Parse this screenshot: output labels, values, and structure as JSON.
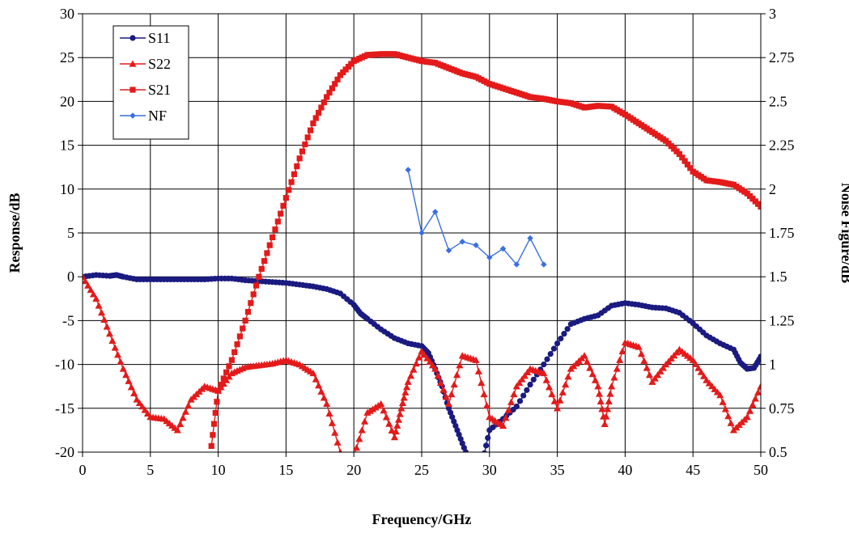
{
  "chart_data": {
    "type": "line",
    "title": "",
    "xlabel": "Frequency/GHz",
    "ylabel": "Response/dB",
    "y2label": "Noise Figure/dB",
    "xlim": [
      0,
      50
    ],
    "ylim": [
      -20,
      30
    ],
    "y2lim": [
      0.5,
      3
    ],
    "xticks": [
      "0",
      "5",
      "10",
      "15",
      "20",
      "25",
      "30",
      "35",
      "40",
      "45",
      "50"
    ],
    "yticks": [
      "-20",
      "-15",
      "-10",
      "-5",
      "0",
      "5",
      "10",
      "15",
      "20",
      "25",
      "30"
    ],
    "y2ticks": [
      "0.5",
      "0.75",
      "1",
      "1.25",
      "1.5",
      "1.75",
      "2",
      "2.25",
      "2.5",
      "2.75",
      "3"
    ],
    "grid": true,
    "legend_position": "top-left",
    "series": [
      {
        "name": "S11",
        "axis": "left",
        "color": "#1a1a80",
        "marker": "circle",
        "x": [
          0,
          1,
          2,
          2.5,
          3,
          4,
          5,
          6,
          7,
          8,
          9,
          10,
          11,
          12,
          13,
          14,
          15,
          16,
          17,
          18,
          19,
          20,
          20.5,
          21,
          22,
          23,
          24,
          25,
          25.5,
          26,
          26.5,
          27,
          27.5,
          28,
          28.5,
          29,
          29.5,
          30,
          31,
          32,
          33,
          34,
          35,
          36,
          37,
          38,
          39,
          40,
          41,
          42,
          43,
          44,
          45,
          46,
          47,
          48,
          48.5,
          49,
          49.5,
          50
        ],
        "values": [
          0,
          0.2,
          0.1,
          0.2,
          0,
          -0.3,
          -0.3,
          -0.3,
          -0.3,
          -0.3,
          -0.3,
          -0.2,
          -0.2,
          -0.4,
          -0.5,
          -0.6,
          -0.7,
          -0.9,
          -1.1,
          -1.4,
          -1.9,
          -3.2,
          -4.2,
          -4.8,
          -6,
          -7,
          -7.6,
          -7.9,
          -8.7,
          -10.5,
          -12.5,
          -15,
          -17,
          -19,
          -21,
          -23,
          -21,
          -17.5,
          -16.2,
          -14.8,
          -12.3,
          -10,
          -7.6,
          -5.4,
          -4.8,
          -4.4,
          -3.3,
          -3,
          -3.2,
          -3.5,
          -3.6,
          -4.1,
          -5.3,
          -6.7,
          -7.6,
          -8.3,
          -9.8,
          -10.5,
          -10.4,
          -9.1
        ]
      },
      {
        "name": "S22",
        "axis": "left",
        "color": "#e41a1a",
        "marker": "triangle",
        "x": [
          0,
          1,
          2,
          3,
          4,
          5,
          6,
          7,
          8,
          9,
          10,
          11,
          12,
          13,
          14,
          15,
          16,
          17,
          18,
          19,
          19.5,
          20,
          21,
          22,
          23,
          23.5,
          24,
          25,
          26,
          27,
          28,
          29,
          30,
          31,
          32,
          33,
          34,
          35,
          36,
          37,
          38,
          38.5,
          39,
          40,
          41,
          42,
          43,
          44,
          45,
          46,
          47,
          48,
          49,
          50
        ],
        "values": [
          0,
          -2.5,
          -6.5,
          -10.5,
          -14,
          -16,
          -16.2,
          -17.5,
          -14,
          -12.5,
          -13,
          -11,
          -10.3,
          -10.1,
          -9.9,
          -9.5,
          -10,
          -11,
          -14.5,
          -20,
          -22,
          -20.5,
          -15.5,
          -14.5,
          -18.3,
          -15,
          -12,
          -8.5,
          -10.5,
          -14.5,
          -9,
          -9.5,
          -16,
          -17,
          -12.5,
          -10.5,
          -11,
          -15,
          -10.5,
          -9,
          -12.5,
          -16.8,
          -12.5,
          -7.5,
          -8,
          -12,
          -10,
          -8.3,
          -9.5,
          -11.8,
          -13.5,
          -17.5,
          -16,
          -12.5
        ]
      },
      {
        "name": "S21",
        "axis": "left",
        "color": "#e41a1a",
        "marker": "square",
        "x": [
          9.5,
          10,
          11,
          12,
          13,
          14,
          15,
          16,
          17,
          18,
          19,
          20,
          21,
          22,
          23,
          24,
          25,
          26,
          27,
          28,
          29,
          30,
          31,
          32,
          33,
          34,
          35,
          36,
          37,
          38,
          39,
          40,
          41,
          42,
          43,
          44,
          45,
          46,
          47,
          48,
          49,
          50
        ],
        "values": [
          -19.3,
          -13,
          -9.5,
          -5,
          0,
          4.5,
          9,
          13.5,
          17.5,
          20.5,
          23,
          24.6,
          25.3,
          25.4,
          25.4,
          25,
          24.6,
          24.4,
          23.8,
          23.2,
          22.8,
          22,
          21.5,
          21,
          20.5,
          20.3,
          20,
          19.8,
          19.3,
          19.5,
          19.4,
          18.5,
          17.5,
          16.5,
          15.5,
          14,
          12,
          11,
          10.8,
          10.5,
          9.5,
          8
        ]
      },
      {
        "name": "NF",
        "axis": "right",
        "color": "#3a6fe0",
        "marker": "diamond",
        "x": [
          24,
          25,
          26,
          27,
          28,
          29,
          30,
          31,
          32,
          33,
          34
        ],
        "values": [
          2.11,
          1.75,
          1.87,
          1.65,
          1.7,
          1.68,
          1.61,
          1.66,
          1.57,
          1.72,
          1.57
        ]
      }
    ]
  }
}
